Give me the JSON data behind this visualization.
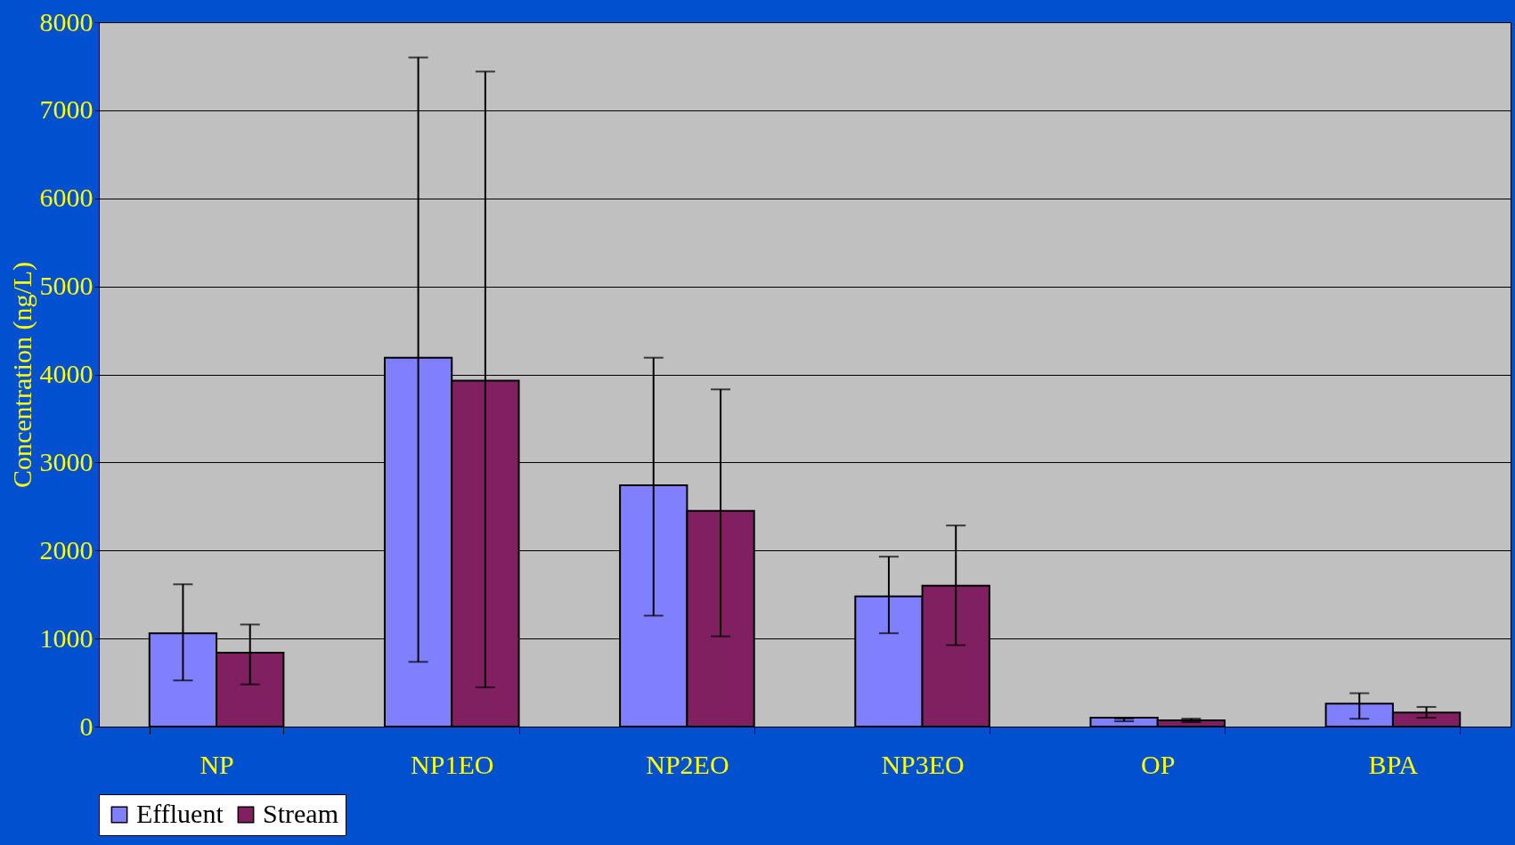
{
  "chart_data": {
    "type": "bar",
    "ylabel": "Concentration (ng/L)",
    "categories": [
      "NP",
      "NP1EO",
      "NP2EO",
      "NP3EO",
      "OP",
      "BPA"
    ],
    "series": [
      {
        "name": "Effluent",
        "color": "#8080ff",
        "values": [
          1060,
          4190,
          2740,
          1480,
          100,
          260
        ],
        "errors": [
          [
            524,
            1616
          ],
          [
            735,
            7600
          ],
          [
            1260,
            4190
          ],
          [
            1060,
            1930
          ],
          [
            60,
            90
          ],
          [
            89,
            379
          ]
        ]
      },
      {
        "name": "Stream",
        "color": "#802060",
        "values": [
          840,
          3930,
          2450,
          1600,
          70,
          160
        ],
        "errors": [
          [
            479,
            1159
          ],
          [
            446,
            7440
          ],
          [
            1025,
            3830
          ],
          [
            925,
            2284
          ],
          [
            50,
            90
          ],
          [
            100,
            223
          ]
        ]
      }
    ],
    "ylim": [
      0,
      8000
    ],
    "yticks": [
      0,
      1000,
      2000,
      3000,
      4000,
      5000,
      6000,
      7000,
      8000
    ],
    "grid": "y",
    "legend": "bottom"
  }
}
